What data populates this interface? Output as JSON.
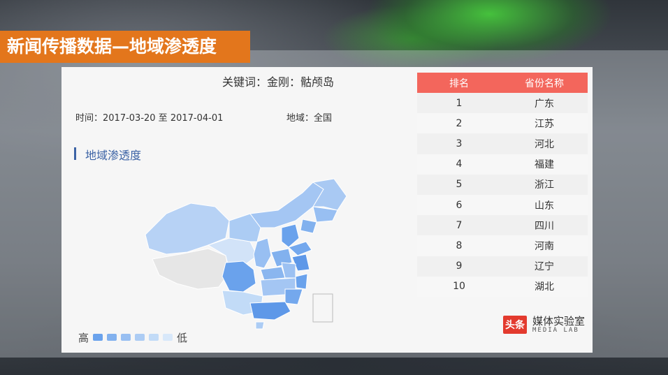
{
  "header": {
    "title": "新闻传播数据—地域渗透度"
  },
  "card": {
    "keywords": "关键词：金刚：骷颅岛",
    "time_label": "时间：2017-03-20  至  2017-04-01",
    "region_label": "地域：全国",
    "section_title": "地域渗透度",
    "legend": {
      "high": "高",
      "low": "低"
    }
  },
  "colors": {
    "title_bg": "#e3761c",
    "table_header_bg": "#f3665c",
    "section_accent": "#3c63a5",
    "legend_scale": [
      "#6aa2ec",
      "#82b1ee",
      "#98bff2",
      "#acccf4",
      "#c2dbf7",
      "#d8e8fa"
    ]
  },
  "ranking": {
    "headers": [
      "排名",
      "省份名称"
    ],
    "rows": [
      [
        "1",
        "广东"
      ],
      [
        "2",
        "江苏"
      ],
      [
        "3",
        "河北"
      ],
      [
        "4",
        "福建"
      ],
      [
        "5",
        "浙江"
      ],
      [
        "6",
        "山东"
      ],
      [
        "7",
        "四川"
      ],
      [
        "8",
        "河南"
      ],
      [
        "9",
        "辽宁"
      ],
      [
        "10",
        "湖北"
      ]
    ]
  },
  "brand": {
    "logo_text": "头条",
    "name_cn": "媒体实验室",
    "name_en": "MEDIA LAB"
  }
}
